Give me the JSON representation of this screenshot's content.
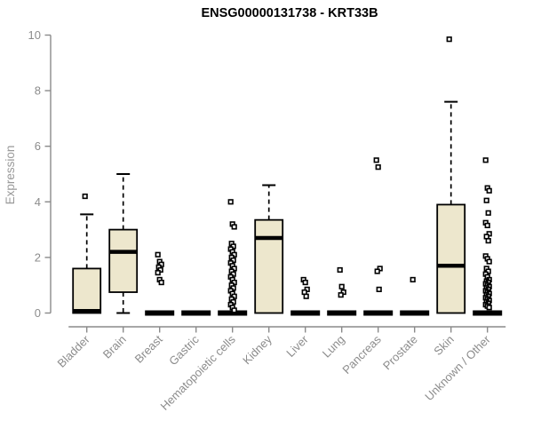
{
  "chart_data": {
    "type": "boxplot",
    "title": "ENSG00000131738 - KRT33B",
    "ylabel": "Expression",
    "xlabel": "",
    "ylim": [
      0,
      10
    ],
    "yticks": [
      0,
      2,
      4,
      6,
      8,
      10
    ],
    "grid": false,
    "legend": "none",
    "categories": [
      "Bladder",
      "Brain",
      "Breast",
      "Gastric",
      "Hematopoietic cells",
      "Kidney",
      "Liver",
      "Lung",
      "Pancreas",
      "Prostate",
      "Skin",
      "Unknown / Other"
    ],
    "boxes": [
      {
        "category": "Bladder",
        "low": 0,
        "q1": 0,
        "median": 0.07,
        "q3": 1.6,
        "high": 3.55,
        "outliers": [
          4.2
        ]
      },
      {
        "category": "Brain",
        "low": 0,
        "q1": 0.75,
        "median": 2.2,
        "q3": 3.0,
        "high": 5.0,
        "outliers": []
      },
      {
        "category": "Breast",
        "low": 0,
        "q1": 0,
        "median": 0,
        "q3": 0,
        "high": 0,
        "outliers": [
          2.1,
          1.85,
          1.75,
          1.65,
          1.55,
          1.45,
          1.2,
          1.1
        ]
      },
      {
        "category": "Gastric",
        "low": 0,
        "q1": 0,
        "median": 0,
        "q3": 0,
        "high": 0,
        "outliers": []
      },
      {
        "category": "Hematopoietic cells",
        "low": 0,
        "q1": 0,
        "median": 0,
        "q3": 0,
        "high": 0,
        "outliers": [
          4.0,
          3.2,
          3.1,
          2.5,
          2.4,
          2.3,
          2.2,
          2.1,
          2.0,
          1.9,
          1.8,
          1.7,
          1.6,
          1.5,
          1.4,
          1.3,
          1.2,
          1.1,
          1.0,
          0.9,
          0.8,
          0.7,
          0.6,
          0.5,
          0.4,
          0.3,
          0.2,
          0.1
        ]
      },
      {
        "category": "Kidney",
        "low": 0,
        "q1": 0,
        "median": 2.7,
        "q3": 3.35,
        "high": 4.6,
        "outliers": []
      },
      {
        "category": "Liver",
        "low": 0,
        "q1": 0,
        "median": 0,
        "q3": 0,
        "high": 0,
        "outliers": [
          1.2,
          1.1,
          0.85,
          0.75,
          0.6
        ]
      },
      {
        "category": "Lung",
        "low": 0,
        "q1": 0,
        "median": 0,
        "q3": 0,
        "high": 0,
        "outliers": [
          1.55,
          0.95,
          0.75,
          0.65
        ]
      },
      {
        "category": "Pancreas",
        "low": 0,
        "q1": 0,
        "median": 0,
        "q3": 0,
        "high": 0,
        "outliers": [
          5.5,
          5.25,
          1.6,
          1.5,
          0.85
        ]
      },
      {
        "category": "Prostate",
        "low": 0,
        "q1": 0,
        "median": 0,
        "q3": 0,
        "high": 0,
        "outliers": [
          1.2
        ]
      },
      {
        "category": "Skin",
        "low": 0,
        "q1": 0,
        "median": 1.7,
        "q3": 3.9,
        "high": 7.6,
        "outliers": [
          9.85
        ]
      },
      {
        "category": "Unknown / Other",
        "low": 0,
        "q1": 0,
        "median": 0,
        "q3": 0,
        "high": 0,
        "outliers": [
          5.5,
          4.5,
          4.4,
          4.05,
          3.6,
          3.25,
          3.15,
          2.85,
          2.75,
          2.6,
          2.05,
          1.95,
          1.85,
          1.6,
          1.5,
          1.4,
          1.3,
          1.2,
          1.15,
          1.1,
          1.05,
          1.0,
          0.95,
          0.9,
          0.85,
          0.8,
          0.75,
          0.7,
          0.65,
          0.6,
          0.55,
          0.5,
          0.45,
          0.4,
          0.35,
          0.3,
          0.25,
          0.2
        ]
      }
    ],
    "colors": {
      "box_fill": "#EDE7CD",
      "box_border": "#000000",
      "median": "#000000",
      "whisker": "#000000",
      "outlier_stroke": "#000000",
      "outlier_fill": "#FFFFFF",
      "axis": "#8A8A8A",
      "tick_label": "#8C8C8C",
      "axis_title": "#999999",
      "title": "#000000",
      "background": "#FFFFFF"
    }
  }
}
